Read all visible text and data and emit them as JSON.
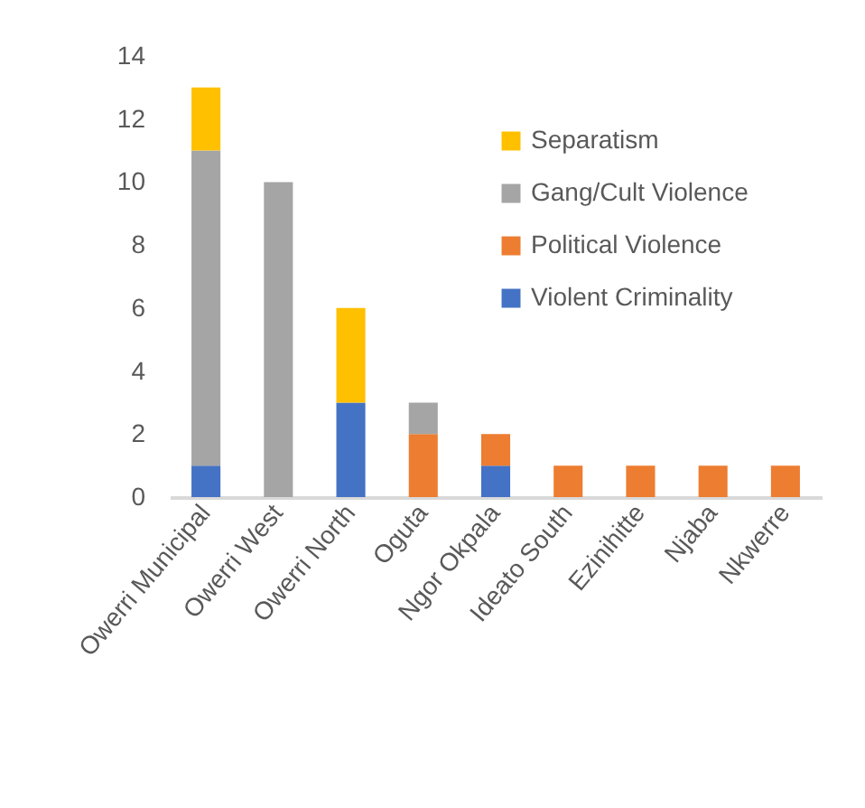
{
  "chart_data": {
    "type": "bar",
    "stacked": true,
    "categories": [
      "Owerri Municipal",
      "Owerri West",
      "Owerri North",
      "Oguta",
      "Ngor Okpala",
      "Ideato South",
      "Ezinihitte",
      "Njaba",
      "Nkwerre"
    ],
    "series": [
      {
        "name": "Violent Criminality",
        "color": "#4472c4",
        "values": [
          1,
          0,
          3,
          0,
          1,
          0,
          0,
          0,
          0
        ]
      },
      {
        "name": "Political Violence",
        "color": "#ed7d31",
        "values": [
          0,
          0,
          0,
          2,
          1,
          1,
          1,
          1,
          1
        ]
      },
      {
        "name": "Gang/Cult Violence",
        "color": "#a5a5a5",
        "values": [
          10,
          10,
          0,
          1,
          0,
          0,
          0,
          0,
          0
        ]
      },
      {
        "name": "Separatism",
        "color": "#ffc000",
        "values": [
          2,
          0,
          3,
          0,
          0,
          0,
          0,
          0,
          0
        ]
      }
    ],
    "ylim": [
      0,
      14
    ],
    "yticks": [
      0,
      2,
      4,
      6,
      8,
      10,
      12,
      14
    ],
    "grid": false,
    "legend": "top right"
  }
}
